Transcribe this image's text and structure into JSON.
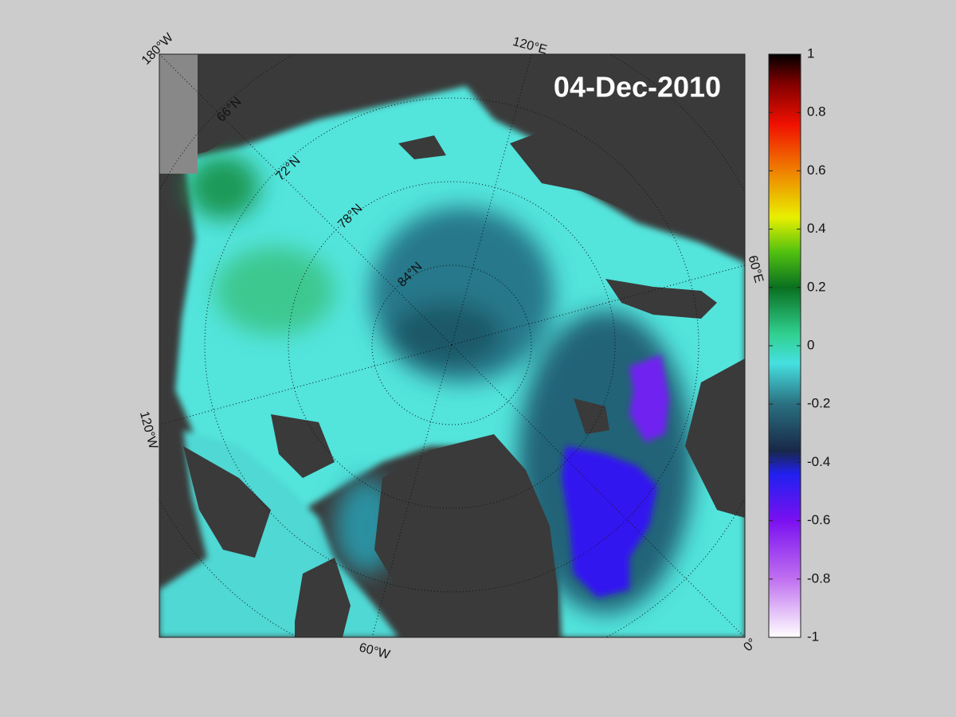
{
  "title": "04-Dec-2010",
  "longitude_labels": [
    "180°W",
    "120°E",
    "60°E",
    "0°",
    "60°W",
    "120°W"
  ],
  "latitude_labels": [
    "66°N",
    "72°N",
    "78°N",
    "84°N"
  ],
  "colorbar": {
    "lim": [
      -1,
      1
    ],
    "ticks": [
      1,
      0.8,
      0.6,
      0.4,
      0.2,
      0,
      -0.2,
      -0.4,
      -0.6,
      -0.8,
      -1
    ]
  }
}
